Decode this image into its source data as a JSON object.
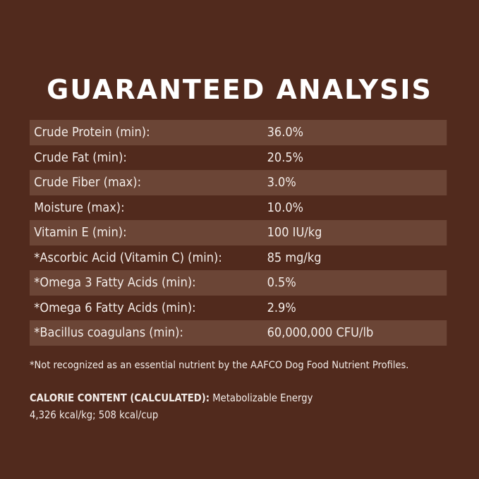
{
  "header": {
    "title": "GUARANTEED ANALYSIS"
  },
  "table": {
    "rows": [
      [
        "Crude Protein (min):",
        "36.0%"
      ],
      [
        "Crude Fat (min):",
        "20.5%"
      ],
      [
        "Crude Fiber (max):",
        "3.0%"
      ],
      [
        "Moisture (max):",
        "10.0%"
      ],
      [
        "Vitamin E (min):",
        "100 IU/kg"
      ],
      [
        "*Ascorbic Acid (Vitamin C) (min):",
        "85 mg/kg"
      ],
      [
        "*Omega 3 Fatty Acids (min):",
        "0.5%"
      ],
      [
        "*Omega 6 Fatty Acids (min):",
        "2.9%"
      ],
      [
        "*Bacillus coagulans (min):",
        "60,000,000 CFU/lb"
      ]
    ]
  },
  "footnote": "*Not recognized as an essential nutrient by the AAFCO Dog Food Nutrient Profiles.",
  "calorie": {
    "label": "CALORIE CONTENT (CALCULATED):",
    "text": "Metabolizable Energy",
    "line2": "4,326 kcal/kg; 508 kcal/cup"
  }
}
